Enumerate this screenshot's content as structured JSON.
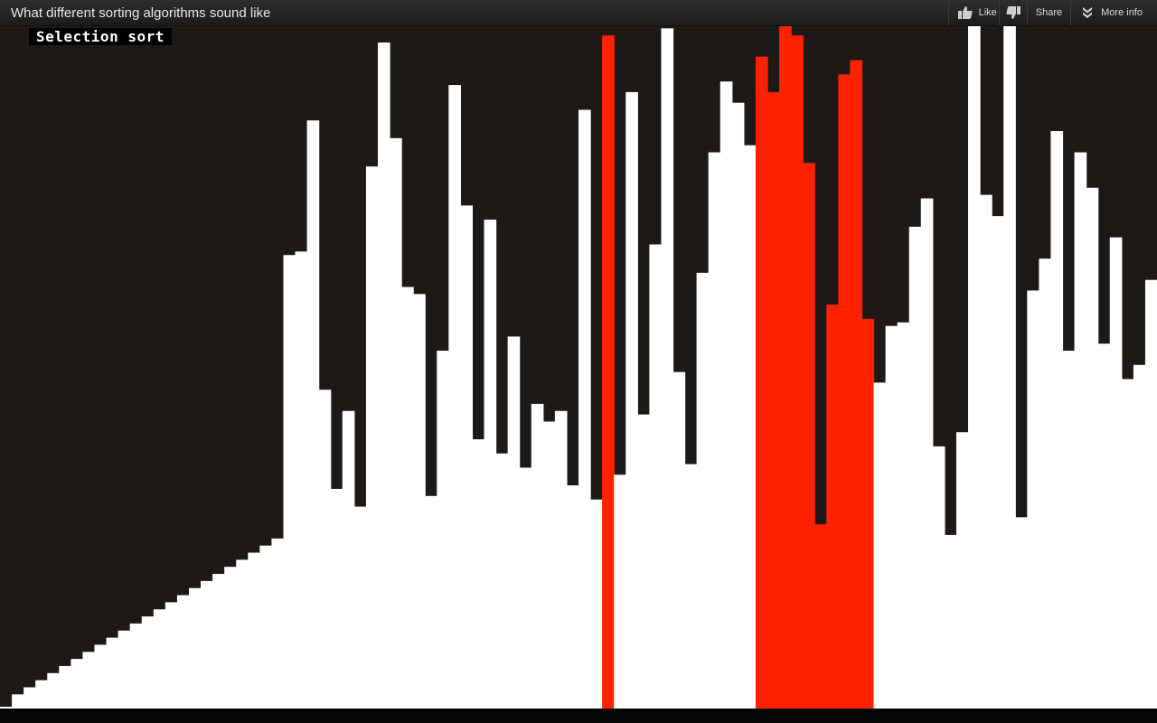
{
  "header": {
    "title": "What different sorting algorithms sound like",
    "like_label": "Like",
    "share_label": "Share",
    "more_label": "More info",
    "icons": [
      "thumbs-up-icon",
      "thumbs-down-icon",
      "double-chevron-down-icon"
    ]
  },
  "video": {
    "algorithm": "Selection sort",
    "colors": {
      "background": "#1d1916",
      "bar": "#ffffff",
      "highlight": "#ff2200"
    },
    "bars": [
      {
        "v": 0,
        "c": "w"
      },
      {
        "v": 2,
        "c": "w"
      },
      {
        "v": 3,
        "c": "w"
      },
      {
        "v": 4,
        "c": "w"
      },
      {
        "v": 5,
        "c": "w"
      },
      {
        "v": 6,
        "c": "w"
      },
      {
        "v": 7,
        "c": "w"
      },
      {
        "v": 8,
        "c": "w"
      },
      {
        "v": 9,
        "c": "w"
      },
      {
        "v": 10,
        "c": "w"
      },
      {
        "v": 11,
        "c": "w"
      },
      {
        "v": 12,
        "c": "w"
      },
      {
        "v": 13,
        "c": "w"
      },
      {
        "v": 14,
        "c": "w"
      },
      {
        "v": 15,
        "c": "w"
      },
      {
        "v": 16,
        "c": "w"
      },
      {
        "v": 17,
        "c": "w"
      },
      {
        "v": 18,
        "c": "w"
      },
      {
        "v": 19,
        "c": "w"
      },
      {
        "v": 20,
        "c": "w"
      },
      {
        "v": 21,
        "c": "w"
      },
      {
        "v": 22,
        "c": "w"
      },
      {
        "v": 23,
        "c": "w"
      },
      {
        "v": 24,
        "c": "w"
      },
      {
        "v": 64,
        "c": "w"
      },
      {
        "v": 64.5,
        "c": "w"
      },
      {
        "v": 83,
        "c": "w"
      },
      {
        "v": 45,
        "c": "w"
      },
      {
        "v": 31,
        "c": "w"
      },
      {
        "v": 42,
        "c": "w"
      },
      {
        "v": 28.5,
        "c": "w"
      },
      {
        "v": 76.5,
        "c": "w"
      },
      {
        "v": 94,
        "c": "w"
      },
      {
        "v": 80.5,
        "c": "w"
      },
      {
        "v": 59.5,
        "c": "w"
      },
      {
        "v": 58.5,
        "c": "w"
      },
      {
        "v": 30,
        "c": "w"
      },
      {
        "v": 50.5,
        "c": "w"
      },
      {
        "v": 88,
        "c": "w"
      },
      {
        "v": 71,
        "c": "w"
      },
      {
        "v": 38,
        "c": "w"
      },
      {
        "v": 69,
        "c": "w"
      },
      {
        "v": 36,
        "c": "w"
      },
      {
        "v": 52.5,
        "c": "w"
      },
      {
        "v": 34,
        "c": "w"
      },
      {
        "v": 43,
        "c": "w"
      },
      {
        "v": 40.5,
        "c": "w"
      },
      {
        "v": 42,
        "c": "w"
      },
      {
        "v": 31.5,
        "c": "w"
      },
      {
        "v": 84.5,
        "c": "w"
      },
      {
        "v": 29.5,
        "c": "w"
      },
      {
        "v": 95,
        "c": "r"
      },
      {
        "v": 33,
        "c": "w"
      },
      {
        "v": 87,
        "c": "w"
      },
      {
        "v": 41.5,
        "c": "w"
      },
      {
        "v": 65.5,
        "c": "w"
      },
      {
        "v": 96,
        "c": "w"
      },
      {
        "v": 47.5,
        "c": "w"
      },
      {
        "v": 34.5,
        "c": "w"
      },
      {
        "v": 61.5,
        "c": "w"
      },
      {
        "v": 78.5,
        "c": "w"
      },
      {
        "v": 88.5,
        "c": "w"
      },
      {
        "v": 85.5,
        "c": "w"
      },
      {
        "v": 79.5,
        "c": "w"
      },
      {
        "v": 92,
        "c": "r"
      },
      {
        "v": 87,
        "c": "r"
      },
      {
        "v": 97,
        "c": "r"
      },
      {
        "v": 95,
        "c": "r"
      },
      {
        "v": 77,
        "c": "r"
      },
      {
        "v": 26,
        "c": "r"
      },
      {
        "v": 57,
        "c": "r"
      },
      {
        "v": 89.5,
        "c": "r"
      },
      {
        "v": 91.5,
        "c": "r"
      },
      {
        "v": 55,
        "c": "r"
      },
      {
        "v": 46,
        "c": "w"
      },
      {
        "v": 54,
        "c": "w"
      },
      {
        "v": 54.5,
        "c": "w"
      },
      {
        "v": 68,
        "c": "w"
      },
      {
        "v": 72,
        "c": "w"
      },
      {
        "v": 37,
        "c": "w"
      },
      {
        "v": 24.5,
        "c": "w"
      },
      {
        "v": 39,
        "c": "w"
      },
      {
        "v": 97,
        "c": "w"
      },
      {
        "v": 72.5,
        "c": "w"
      },
      {
        "v": 69.5,
        "c": "w"
      },
      {
        "v": 98,
        "c": "w"
      },
      {
        "v": 27,
        "c": "w"
      },
      {
        "v": 59,
        "c": "w"
      },
      {
        "v": 63.5,
        "c": "w"
      },
      {
        "v": 81.5,
        "c": "w"
      },
      {
        "v": 50.5,
        "c": "w"
      },
      {
        "v": 78.5,
        "c": "w"
      },
      {
        "v": 73.5,
        "c": "w"
      },
      {
        "v": 51.5,
        "c": "w"
      },
      {
        "v": 66.5,
        "c": "w"
      },
      {
        "v": 46.5,
        "c": "w"
      },
      {
        "v": 48.5,
        "c": "w"
      },
      {
        "v": 60.5,
        "c": "w"
      }
    ]
  }
}
